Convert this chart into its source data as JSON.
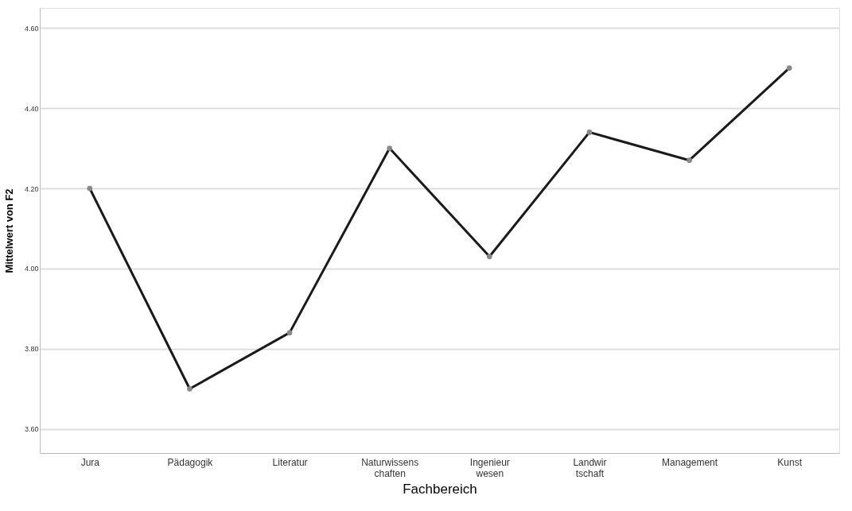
{
  "chart_data": {
    "type": "line",
    "xlabel": "Fachbereich",
    "ylabel": "Mittelwert von F2",
    "categories": [
      "Jura",
      "Pädagogik",
      "Literatur",
      "Naturwissens\nchaften",
      "Ingenieur\nwesen",
      "Landwir\ntschaft",
      "Management",
      "Kunst"
    ],
    "series": [
      {
        "color": "#1a1a1a",
        "values": [
          4.2,
          3.7,
          3.84,
          4.3,
          4.03,
          4.34,
          4.27,
          4.5
        ]
      }
    ],
    "ylim": [
      3.54,
      4.65
    ],
    "yticks": [
      {
        "value": 3.6,
        "label": "3.60"
      },
      {
        "value": 3.8,
        "label": "3.80"
      },
      {
        "value": 4.0,
        "label": "4.00"
      },
      {
        "value": 4.2,
        "label": "4.20"
      },
      {
        "value": 4.4,
        "label": "4.40"
      },
      {
        "value": 4.6,
        "label": "4.60"
      }
    ],
    "grid": "y",
    "marker": "circle",
    "line_style": "solid",
    "legend": false
  }
}
